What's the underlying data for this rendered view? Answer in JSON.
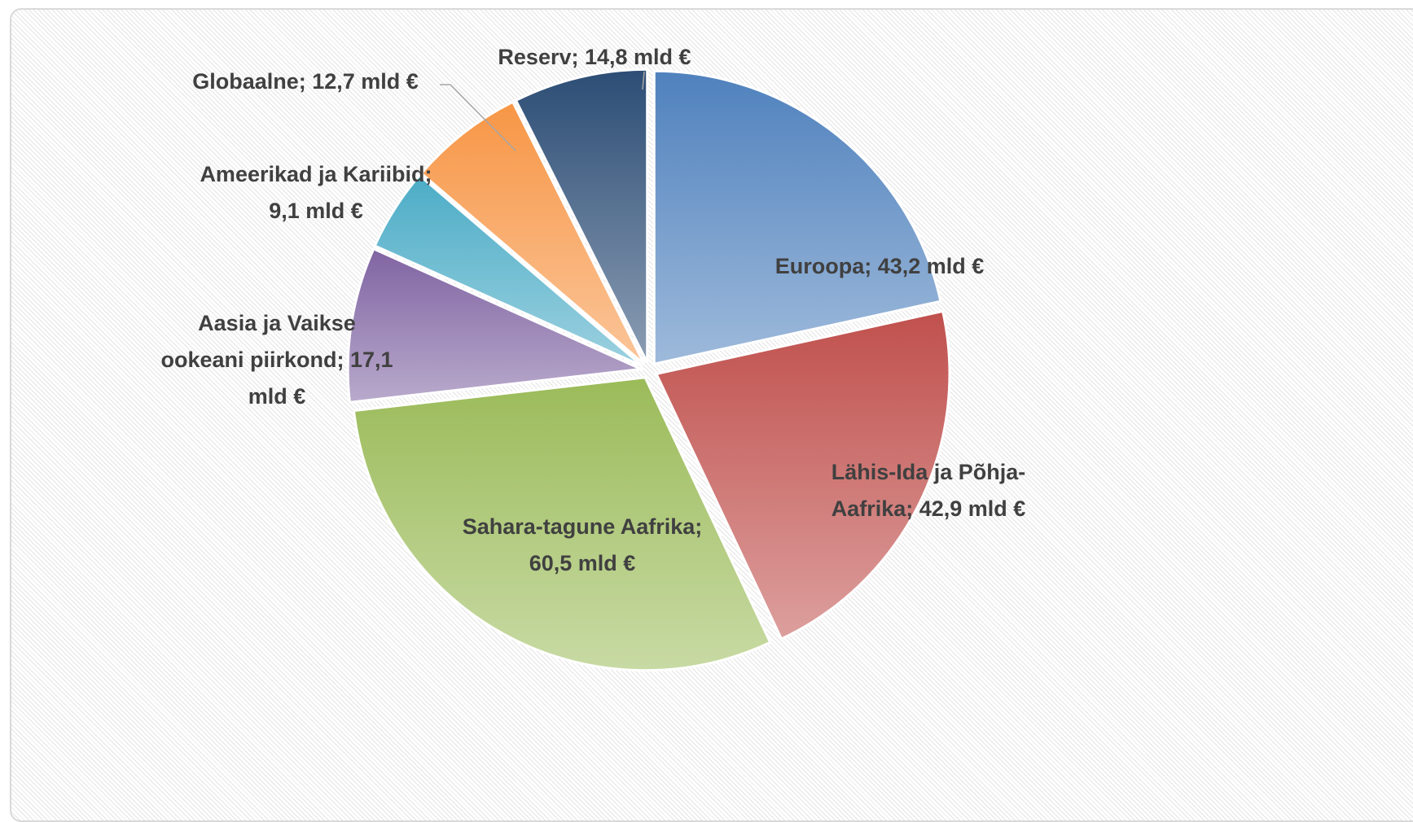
{
  "chart_data": {
    "type": "pie",
    "value_labels": [
      "Euroopa; 43,2 mld €",
      "Lähis-Ida ja Põhja-Aafrika; 42,9 mld €",
      "Sahara-tagune Aafrika; 60,5 mld €",
      "Aasia ja Vaikse ookeani piirkond; 17,1 mld €",
      "Ameerikad ja Kariibid; 9,1 mld €",
      "Globaalne; 12,7 mld €",
      "Reserv; 14,8 mld €"
    ],
    "values": [
      43.2,
      42.9,
      60.5,
      17.1,
      9.1,
      12.7,
      14.8
    ],
    "colors": [
      "#4f81bd",
      "#c0504d",
      "#9bbb59",
      "#8064a2",
      "#4bacc6",
      "#f79646",
      "#2c4d75"
    ]
  }
}
